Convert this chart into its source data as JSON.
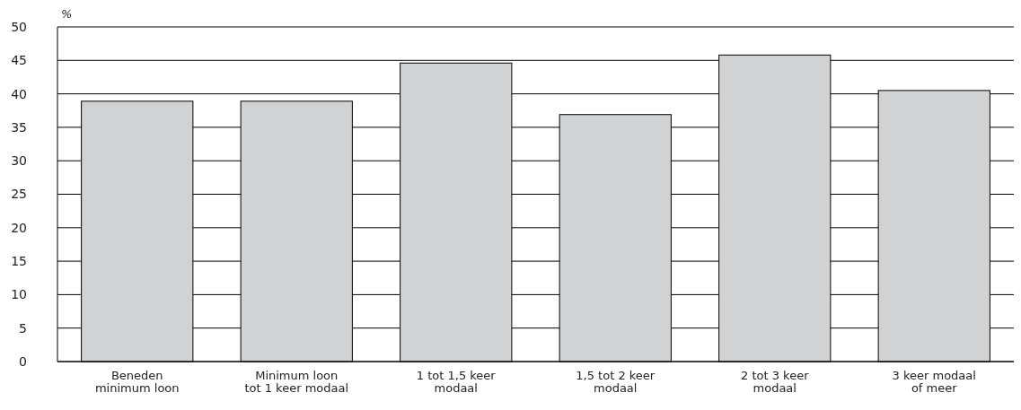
{
  "chart_data": {
    "type": "bar",
    "ylabel": "%",
    "categories": [
      "Beneden\nminimum loon",
      "Minimum loon\ntot 1 keer modaal",
      "1 tot 1,5 keer\nmodaal",
      "1,5 tot 2 keer\nmodaal",
      "2 tot 3 keer\nmodaal",
      "3 keer modaal\nof meer"
    ],
    "values": [
      38.9,
      38.9,
      44.6,
      36.9,
      45.8,
      40.5
    ],
    "color": "#d1d2d4",
    "ylim": [
      0,
      50
    ],
    "yticks": [
      0,
      5,
      10,
      15,
      20,
      25,
      30,
      35,
      40,
      45,
      50
    ],
    "grid": "y"
  }
}
